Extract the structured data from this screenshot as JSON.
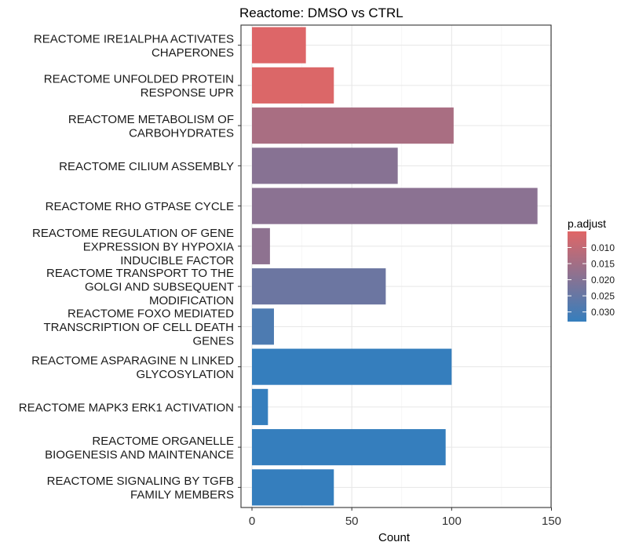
{
  "chart_data": {
    "type": "bar",
    "orientation": "horizontal",
    "title": "Reactome: DMSO vs CTRL",
    "xlabel": "Count",
    "ylabel": "",
    "xlim": [
      0,
      150
    ],
    "xticks": [
      "0",
      "50",
      "100",
      "150"
    ],
    "grid": true,
    "legend": {
      "title": "p.adjust",
      "placement": "right",
      "type": "gradient",
      "low_color": "#e06666",
      "high_color": "#357ebd",
      "range": [
        0.005,
        0.033
      ],
      "ticks": [
        "0.010",
        "0.015",
        "0.020",
        "0.025",
        "0.030"
      ]
    },
    "categories": [
      [
        "REACTOME IRE1ALPHA ACTIVATES",
        "CHAPERONES"
      ],
      [
        "REACTOME UNFOLDED PROTEIN",
        "RESPONSE UPR"
      ],
      [
        "REACTOME METABOLISM OF",
        "CARBOHYDRATES"
      ],
      [
        "REACTOME CILIUM ASSEMBLY"
      ],
      [
        "REACTOME RHO GTPASE CYCLE"
      ],
      [
        "REACTOME REGULATION OF GENE",
        "EXPRESSION BY HYPOXIA",
        "INDUCIBLE FACTOR"
      ],
      [
        "REACTOME TRANSPORT TO THE",
        "GOLGI AND SUBSEQUENT",
        "MODIFICATION"
      ],
      [
        "REACTOME FOXO MEDIATED",
        "TRANSCRIPTION OF CELL DEATH",
        "GENES"
      ],
      [
        "REACTOME ASPARAGINE N LINKED",
        "GLYCOSYLATION"
      ],
      [
        "REACTOME MAPK3 ERK1 ACTIVATION"
      ],
      [
        "REACTOME ORGANELLE",
        "BIOGENESIS AND MAINTENANCE"
      ],
      [
        "REACTOME SIGNALING BY TGFB",
        "FAMILY MEMBERS"
      ]
    ],
    "values": [
      27,
      41,
      101,
      73,
      143,
      9,
      67,
      11,
      100,
      8,
      97,
      41
    ],
    "p_adjust": [
      0.0055,
      0.0058,
      0.014,
      0.0195,
      0.019,
      0.0185,
      0.024,
      0.029,
      0.033,
      0.033,
      0.033,
      0.033
    ]
  }
}
